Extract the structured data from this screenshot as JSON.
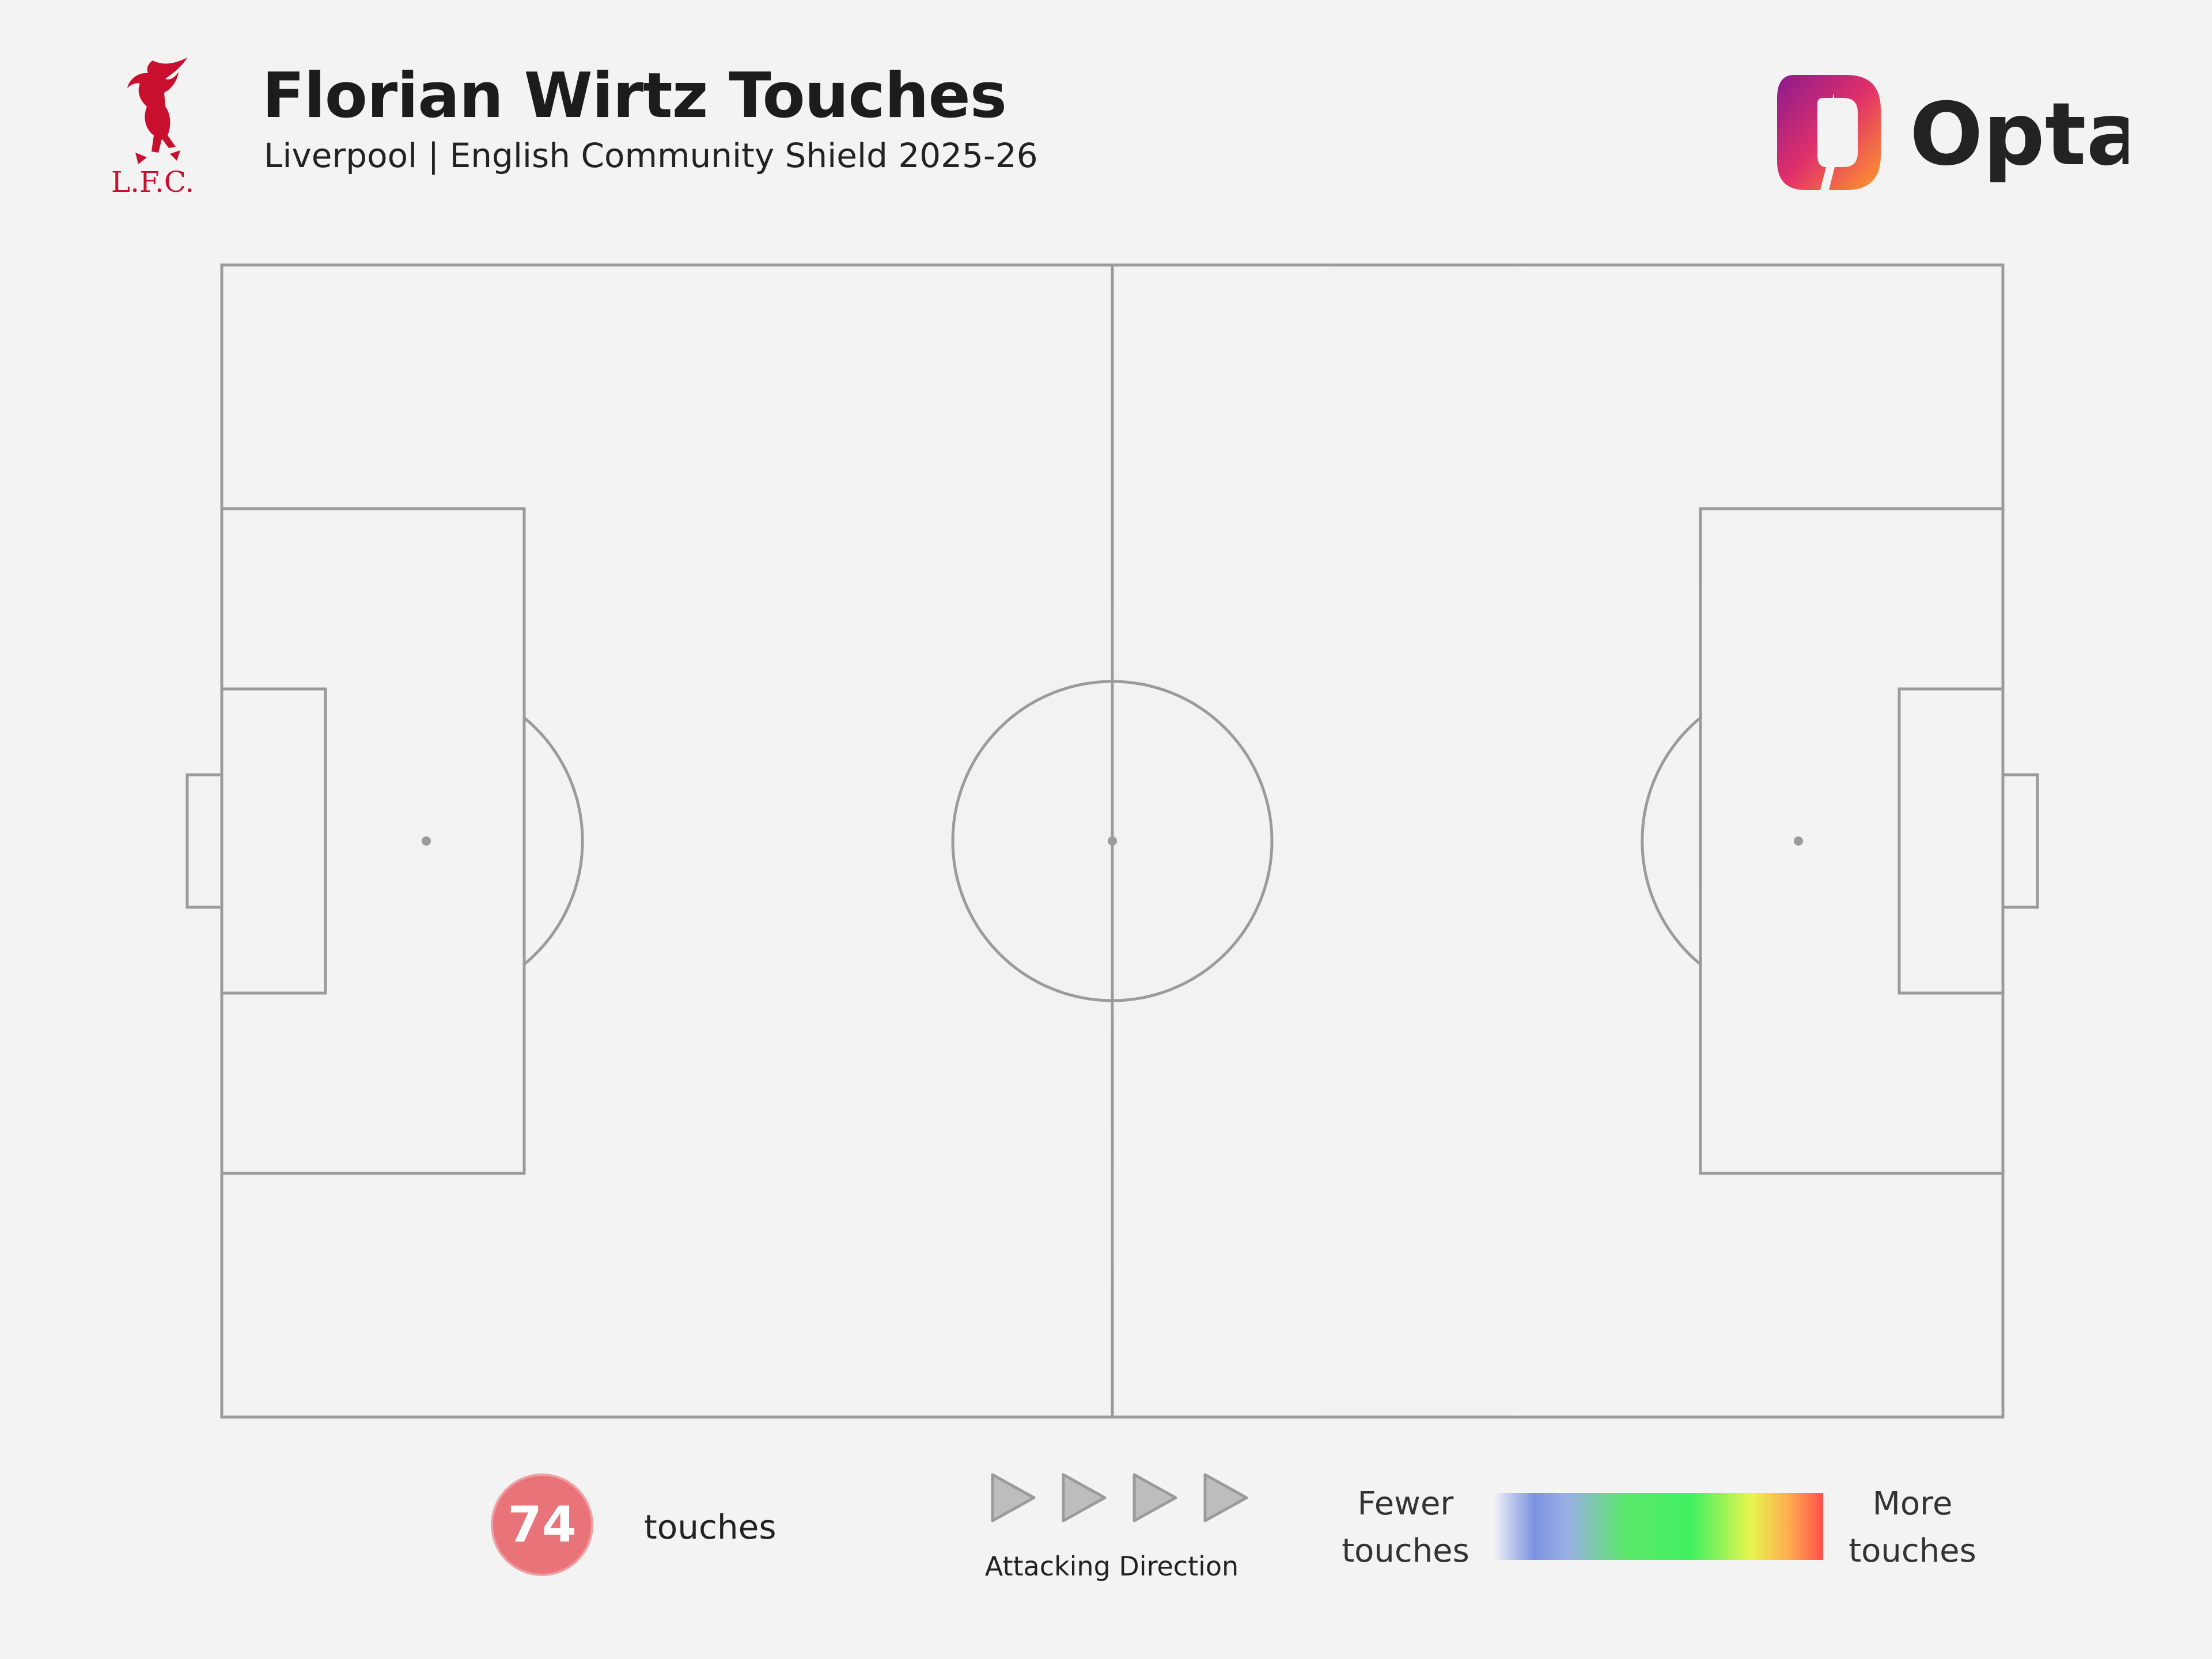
{
  "header": {
    "title": "Florian Wirtz Touches",
    "subtitle": "Liverpool | English Community Shield 2025-26",
    "club_crest_icon": "liverbird-crest-icon",
    "club_crest_text": "L.F.C.",
    "brand_logo_icon": "opta-logo-icon",
    "brand_name": "Opta"
  },
  "colors": {
    "background": "#f3f3f3",
    "pitch_lines": "#9b9b9b",
    "crest_red": "#c8102e",
    "badge": "#e8747a"
  },
  "chart_data": {
    "type": "heatmap",
    "title": "Florian Wirtz Touches",
    "subtitle": "Liverpool | English Community Shield 2025-26",
    "x_range": [
      0,
      100
    ],
    "y_range": [
      0,
      100
    ],
    "attacking_direction": "left-to-right",
    "hotspots": [
      {
        "x": 67.5,
        "y": 85,
        "intensity": 1.0
      },
      {
        "x": 48.5,
        "y": 55,
        "intensity": 0.68
      },
      {
        "x": 43,
        "y": 43,
        "intensity": 0.5
      },
      {
        "x": 66,
        "y": 35,
        "intensity": 0.62
      },
      {
        "x": 67,
        "y": 9,
        "intensity": 0.6
      },
      {
        "x": 62,
        "y": 70,
        "intensity": 0.55
      },
      {
        "x": 42,
        "y": 68,
        "intensity": 0.3
      },
      {
        "x": 46,
        "y": 17,
        "intensity": 0.32
      },
      {
        "x": 35,
        "y": 85,
        "intensity": 0.18
      },
      {
        "x": 83,
        "y": 83,
        "intensity": 0.22
      },
      {
        "x": 89,
        "y": 72,
        "intensity": 0.28
      },
      {
        "x": 84,
        "y": 50,
        "intensity": 0.16
      },
      {
        "x": 89,
        "y": 30,
        "intensity": 0.16
      },
      {
        "x": 76,
        "y": 49,
        "intensity": 0.1
      },
      {
        "x": 98,
        "y": 3,
        "intensity": 0.12
      },
      {
        "x": 56,
        "y": 40,
        "intensity": 0.14
      },
      {
        "x": 42,
        "y": 28,
        "intensity": 0.2
      }
    ]
  },
  "footer": {
    "touch_count": "74",
    "touch_unit": "touches",
    "direction_label": "Attacking Direction",
    "direction_icon": "play-arrow-icon",
    "legend_low": [
      "Fewer",
      "touches"
    ],
    "legend_high": [
      "More",
      "touches"
    ]
  }
}
